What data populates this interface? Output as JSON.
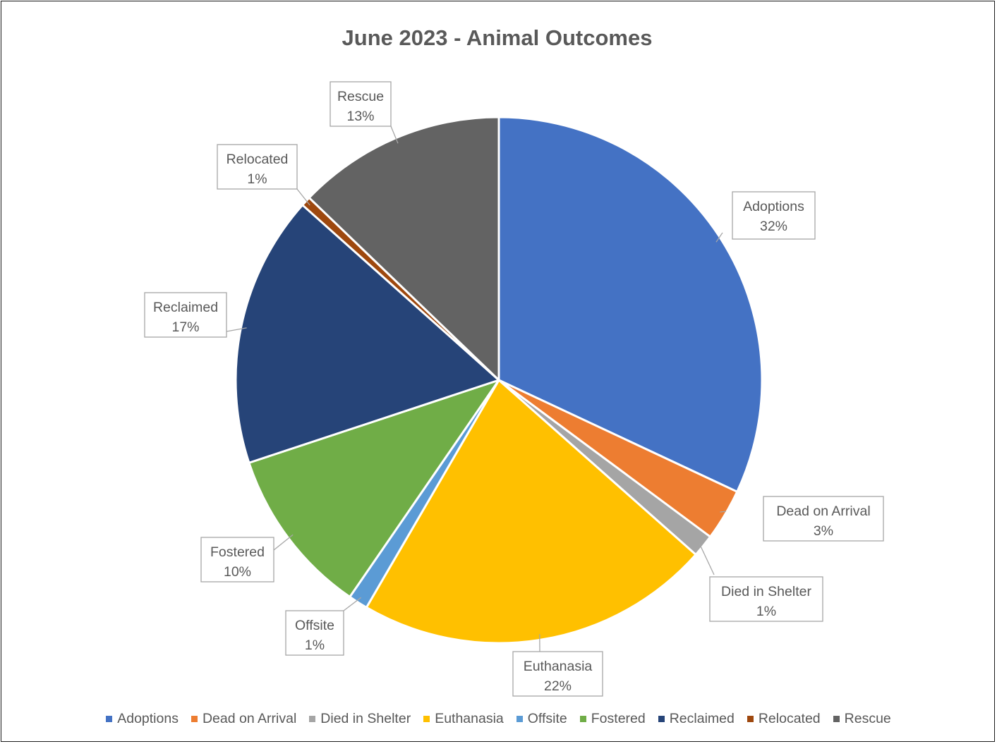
{
  "chart_data": {
    "type": "pie",
    "title": "June 2023 - Animal Outcomes",
    "legend_position": "bottom",
    "slices": [
      {
        "label": "Adoptions",
        "value": 32.2,
        "display": "32%",
        "color": "#4472C4"
      },
      {
        "label": "Dead on Arrival",
        "value": 3.2,
        "display": "3%",
        "color": "#ED7D31"
      },
      {
        "label": "Died in Shelter",
        "value": 1.4,
        "display": "1%",
        "color": "#A5A5A5"
      },
      {
        "label": "Euthanasia",
        "value": 22.0,
        "display": "22%",
        "color": "#FFC000"
      },
      {
        "label": "Offsite",
        "value": 1.2,
        "display": "1%",
        "color": "#5B9BD5"
      },
      {
        "label": "Fostered",
        "value": 10.4,
        "display": "10%",
        "color": "#70AD47"
      },
      {
        "label": "Reclaimed",
        "value": 16.8,
        "display": "17%",
        "color": "#264478"
      },
      {
        "label": "Relocated",
        "value": 0.6,
        "display": "1%",
        "color": "#9E480E"
      },
      {
        "label": "Rescue",
        "value": 12.9,
        "display": "13%",
        "color": "#636363"
      }
    ]
  }
}
